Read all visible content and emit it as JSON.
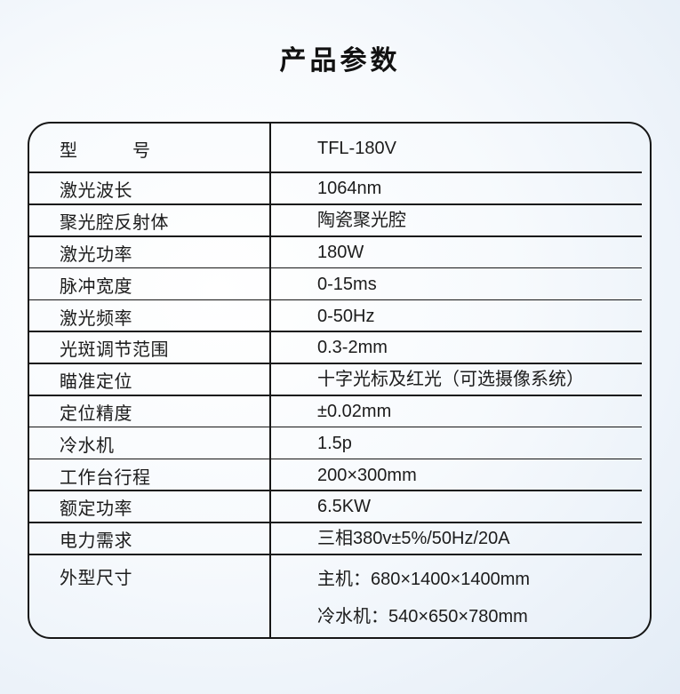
{
  "page": {
    "title": "产品参数"
  },
  "colors": {
    "border": "#161616",
    "text": "#1c1c1c",
    "background_center": "#ffffff",
    "background_edge": "#e3ecf6"
  },
  "table": {
    "rows": [
      {
        "label": "型　　　号",
        "values": [
          "TFL-180V"
        ]
      },
      {
        "label": "激光波长",
        "values": [
          "1064nm"
        ]
      },
      {
        "label": "聚光腔反射体",
        "values": [
          "陶瓷聚光腔"
        ]
      },
      {
        "label": "激光功率",
        "values": [
          "180W"
        ]
      },
      {
        "label": "脉冲宽度",
        "values": [
          "0-15ms"
        ]
      },
      {
        "label": "激光频率",
        "values": [
          "0-50Hz"
        ]
      },
      {
        "label": "光斑调节范围",
        "values": [
          "0.3-2mm"
        ]
      },
      {
        "label": "瞄准定位",
        "values": [
          "十字光标及红光（可选摄像系统）"
        ]
      },
      {
        "label": "定位精度",
        "values": [
          "±0.02mm"
        ]
      },
      {
        "label": "冷水机",
        "values": [
          "1.5p"
        ]
      },
      {
        "label": "工作台行程",
        "values": [
          "200×300mm"
        ]
      },
      {
        "label": "额定功率",
        "values": [
          "6.5KW"
        ]
      },
      {
        "label": "电力需求",
        "values": [
          "三相380v±5%/50Hz/20A"
        ]
      },
      {
        "label": "外型尺寸",
        "values": [
          "主机：680×1400×1400mm",
          "冷水机：540×650×780mm"
        ]
      }
    ]
  }
}
